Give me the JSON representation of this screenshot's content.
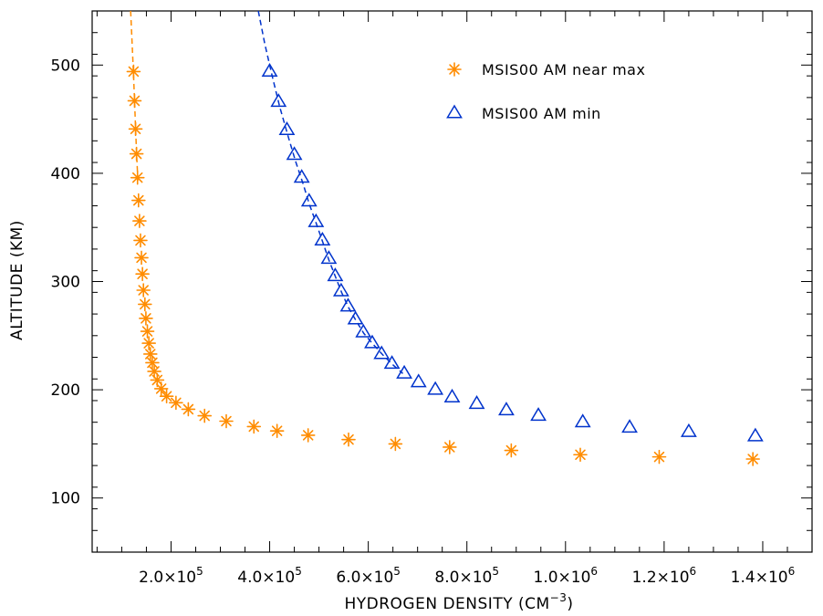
{
  "chart_data": {
    "type": "scatter",
    "xlabel": "HYDROGEN DENSITY (CM",
    "xlabel_superscript": "−3",
    "xlabel_suffix": ")",
    "ylabel": "ALTITUDE (KM)",
    "xlim": [
      40000,
      1500000
    ],
    "ylim": [
      50,
      550
    ],
    "x_ticks": [
      {
        "mantissa": "2.0",
        "exp": "5",
        "value": 200000
      },
      {
        "mantissa": "4.0",
        "exp": "5",
        "value": 400000
      },
      {
        "mantissa": "6.0",
        "exp": "5",
        "value": 600000
      },
      {
        "mantissa": "8.0",
        "exp": "5",
        "value": 800000
      },
      {
        "mantissa": "1.0",
        "exp": "6",
        "value": 1000000
      },
      {
        "mantissa": "1.2",
        "exp": "6",
        "value": 1200000
      },
      {
        "mantissa": "1.4",
        "exp": "6",
        "value": 1400000
      }
    ],
    "times_symbol": "×10",
    "y_ticks": [
      "100",
      "200",
      "300",
      "400",
      "500"
    ],
    "legend_position": "top-right",
    "series": [
      {
        "name": "MSIS00 AM near max",
        "marker": "asterisk",
        "color": "#ff8c00",
        "points": [
          [
            124000,
            494
          ],
          [
            126000,
            467
          ],
          [
            128000,
            441
          ],
          [
            130000,
            418
          ],
          [
            132000,
            396
          ],
          [
            134000,
            375
          ],
          [
            136000,
            356
          ],
          [
            138000,
            338
          ],
          [
            140000,
            322
          ],
          [
            142000,
            307
          ],
          [
            144000,
            292
          ],
          [
            147000,
            279
          ],
          [
            149000,
            266
          ],
          [
            152000,
            254
          ],
          [
            155000,
            243
          ],
          [
            158000,
            233
          ],
          [
            162000,
            225
          ],
          [
            166000,
            217
          ],
          [
            172000,
            209
          ],
          [
            180000,
            201
          ],
          [
            191000,
            194
          ],
          [
            210000,
            188
          ],
          [
            235000,
            182
          ],
          [
            268000,
            176
          ],
          [
            312000,
            171
          ],
          [
            368000,
            166
          ],
          [
            415000,
            162
          ],
          [
            478000,
            158
          ],
          [
            560000,
            154
          ],
          [
            655000,
            150
          ],
          [
            765000,
            147
          ],
          [
            890000,
            144
          ],
          [
            1030000,
            140
          ],
          [
            1190000,
            138
          ],
          [
            1380000,
            136
          ]
        ],
        "fit_line": [
          [
            118000,
            550
          ],
          [
            121000,
            520
          ],
          [
            124000,
            490
          ],
          [
            127000,
            455
          ],
          [
            130000,
            420
          ],
          [
            133000,
            390
          ]
        ]
      },
      {
        "name": "MSIS00 AM min",
        "marker": "triangle",
        "color": "#0033cc",
        "points": [
          [
            400000,
            494
          ],
          [
            418000,
            466
          ],
          [
            435000,
            440
          ],
          [
            450000,
            417
          ],
          [
            465000,
            396
          ],
          [
            480000,
            374
          ],
          [
            494000,
            355
          ],
          [
            507000,
            338
          ],
          [
            520000,
            321
          ],
          [
            533000,
            305
          ],
          [
            545000,
            291
          ],
          [
            559000,
            277
          ],
          [
            574000,
            265
          ],
          [
            590000,
            253
          ],
          [
            608000,
            243
          ],
          [
            627000,
            233
          ],
          [
            648000,
            224
          ],
          [
            673000,
            215
          ],
          [
            702000,
            207
          ],
          [
            736000,
            200
          ],
          [
            770000,
            193
          ],
          [
            820000,
            187
          ],
          [
            880000,
            181
          ],
          [
            945000,
            176
          ],
          [
            1035000,
            170
          ],
          [
            1130000,
            165
          ],
          [
            1250000,
            161
          ],
          [
            1385000,
            157
          ]
        ],
        "fit_line": [
          [
            377000,
            550
          ],
          [
            390000,
            520
          ],
          [
            405000,
            490
          ],
          [
            420000,
            462
          ],
          [
            437000,
            435
          ],
          [
            452000,
            412
          ],
          [
            468000,
            390
          ],
          [
            480000,
            372
          ],
          [
            495000,
            353
          ],
          [
            508000,
            336
          ],
          [
            520000,
            320
          ],
          [
            533000,
            305
          ],
          [
            546000,
            290
          ],
          [
            560000,
            276
          ],
          [
            575000,
            264
          ],
          [
            591000,
            252
          ],
          [
            610000,
            242
          ],
          [
            630000,
            232
          ],
          [
            650000,
            223
          ],
          [
            670000,
            215
          ]
        ]
      }
    ]
  }
}
